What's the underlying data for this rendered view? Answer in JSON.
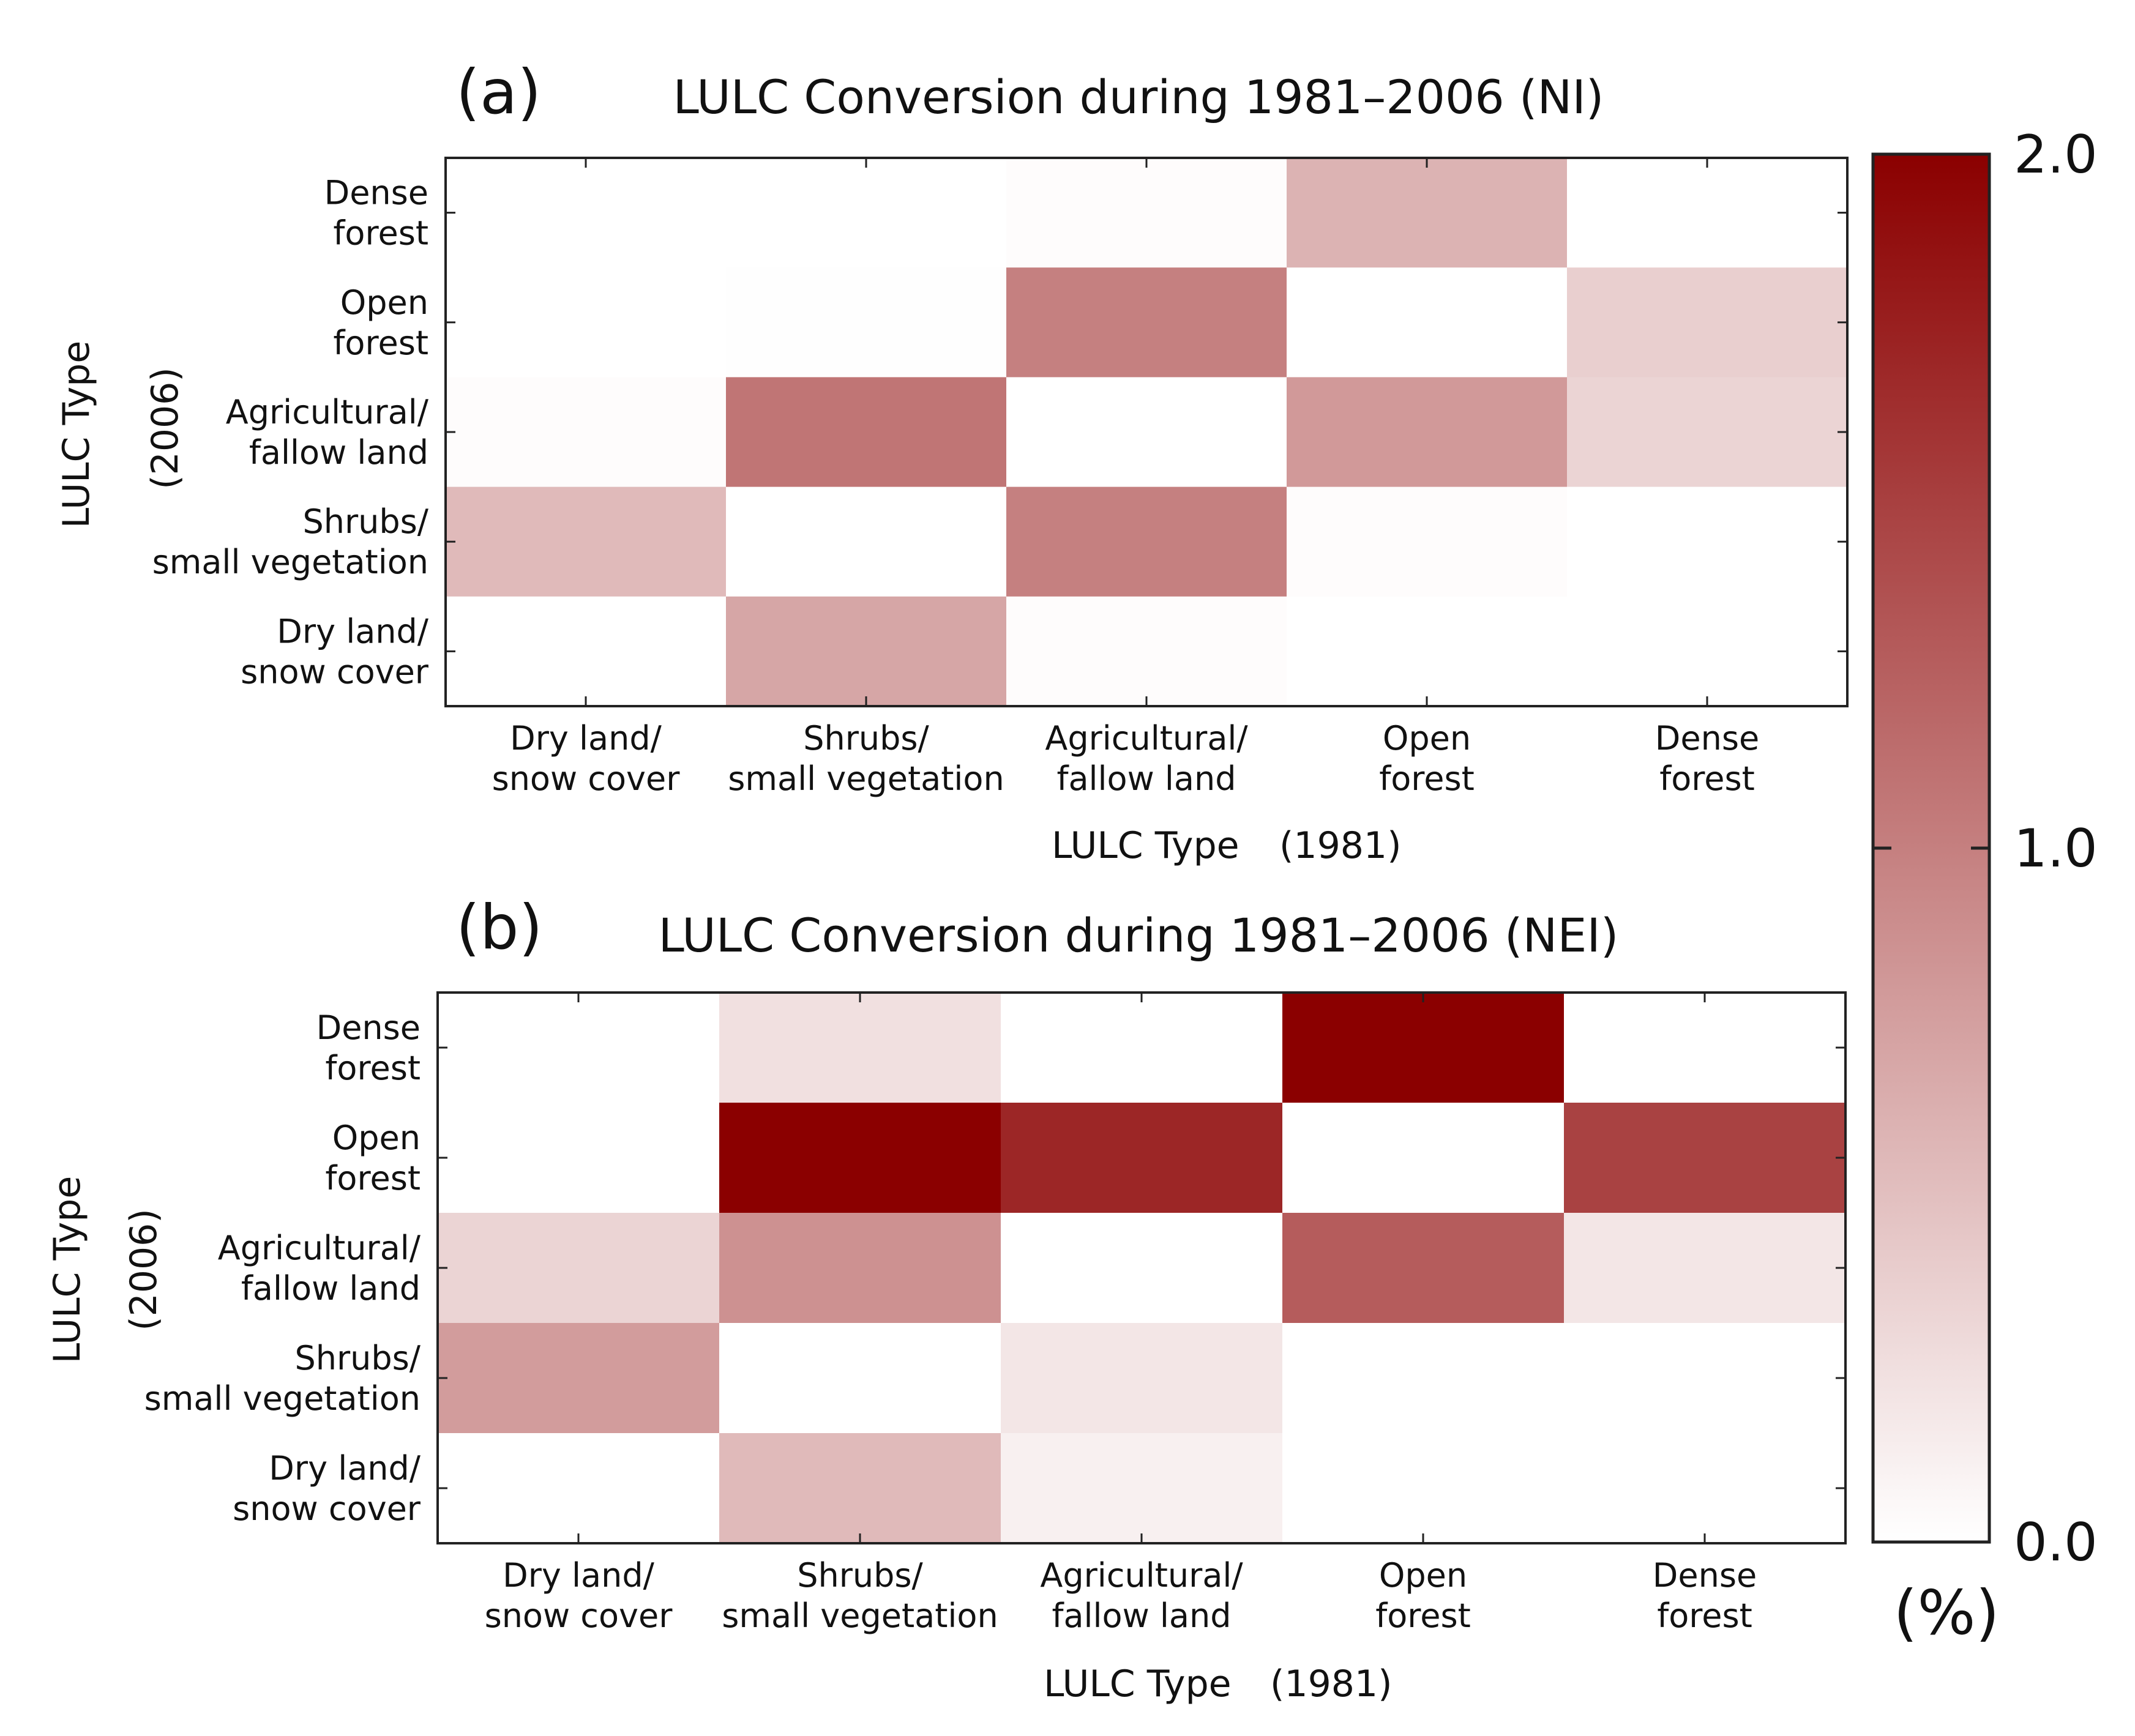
{
  "chart_data": [
    {
      "type": "heatmap",
      "panel": "(a)",
      "title": "LULC Conversion during 1981–2006 (NI)",
      "x_categories": [
        [
          "Dry land/",
          "snow cover"
        ],
        [
          "Shrubs/",
          "small vegetation"
        ],
        [
          "Agricultural/",
          "fallow land"
        ],
        [
          "Open",
          "forest"
        ],
        [
          "Dense",
          "forest"
        ]
      ],
      "y_categories": [
        [
          "Dense",
          "forest"
        ],
        [
          "Open",
          "forest"
        ],
        [
          "Agricultural/",
          "fallow land"
        ],
        [
          "Shrubs/",
          "small vegetation"
        ],
        [
          "Dry land/",
          "snow cover"
        ]
      ],
      "xlabel": [
        "LULC Type",
        "(1981)"
      ],
      "ylabel": [
        "LULC Type",
        "(2006)"
      ],
      "values": [
        [
          0.0,
          0.0,
          0.02,
          0.6,
          0.0
        ],
        [
          0.0,
          0.01,
          1.0,
          0.0,
          0.38
        ],
        [
          0.02,
          1.08,
          0.0,
          0.8,
          0.34
        ],
        [
          0.54,
          0.0,
          1.0,
          0.02,
          0.0
        ],
        [
          0.0,
          0.7,
          0.02,
          0.0,
          0.0
        ]
      ]
    },
    {
      "type": "heatmap",
      "panel": "(b)",
      "title": "LULC Conversion during 1981–2006 (NEI)",
      "x_categories": [
        [
          "Dry land/",
          "snow cover"
        ],
        [
          "Shrubs/",
          "small vegetation"
        ],
        [
          "Agricultural/",
          "fallow land"
        ],
        [
          "Open",
          "forest"
        ],
        [
          "Dense",
          "forest"
        ]
      ],
      "y_categories": [
        [
          "Dense",
          "forest"
        ],
        [
          "Open",
          "forest"
        ],
        [
          "Agricultural/",
          "fallow land"
        ],
        [
          "Shrubs/",
          "small vegetation"
        ],
        [
          "Dry land/",
          "snow cover"
        ]
      ],
      "xlabel": [
        "LULC Type",
        "(1981)"
      ],
      "ylabel": [
        "LULC Type",
        "(2006)"
      ],
      "values": [
        [
          0.0,
          0.24,
          0.0,
          2.0,
          0.0
        ],
        [
          0.0,
          2.0,
          1.7,
          0.0,
          1.48
        ],
        [
          0.34,
          0.86,
          0.0,
          1.28,
          0.2
        ],
        [
          0.78,
          0.0,
          0.2,
          0.0,
          0.0
        ],
        [
          0.0,
          0.54,
          0.12,
          0.0,
          0.0
        ]
      ]
    }
  ],
  "colorbar": {
    "min": 0.0,
    "max": 2.0,
    "ticks": [
      "2.0",
      "1.0",
      "0.0"
    ],
    "tick_values": [
      2.0,
      1.0,
      0.0
    ],
    "unit": "(%)",
    "color_low": "#ffffff",
    "color_high": "#8b0000"
  }
}
